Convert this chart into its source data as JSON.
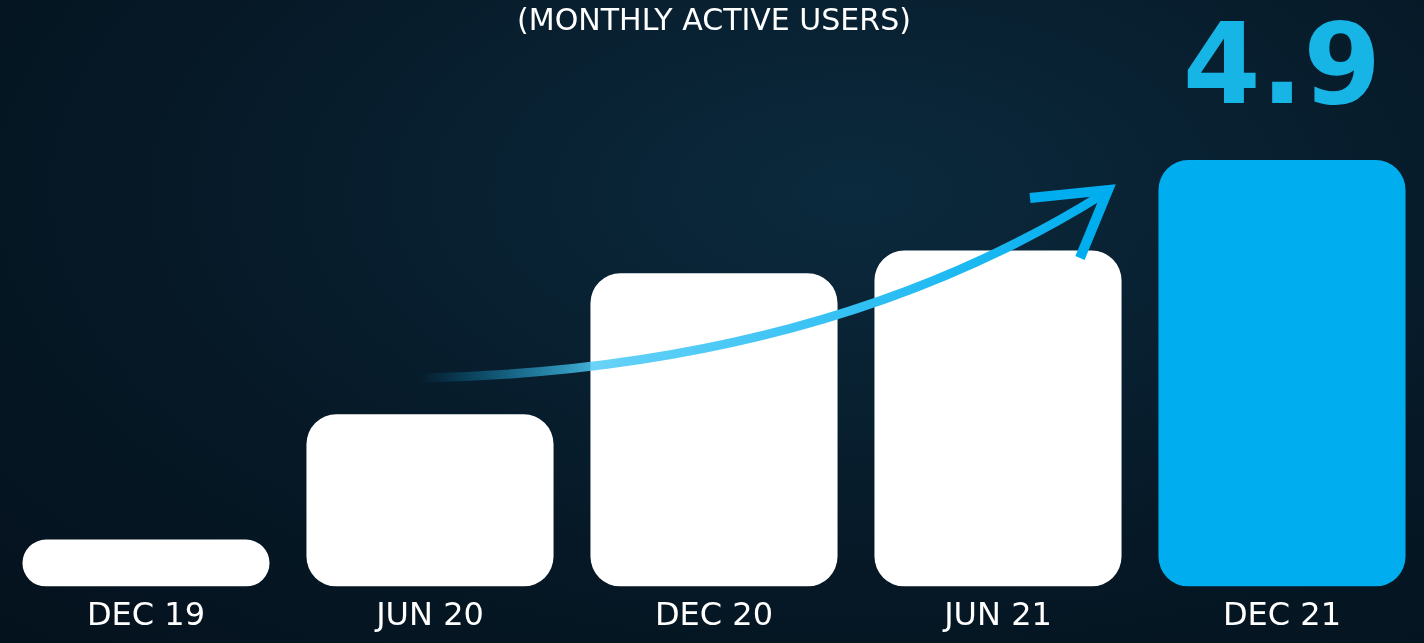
{
  "chart_data": {
    "type": "bar",
    "subtitle": "(MONTHLY ACTIVE USERS)",
    "categories": [
      "DEC 19",
      "JUN 20",
      "DEC 20",
      "JUN 21",
      "DEC 21"
    ],
    "values": [
      0.54,
      1.98,
      3.6,
      3.86,
      4.9
    ],
    "colors": [
      "#ffffff",
      "#ffffff",
      "#ffffff",
      "#ffffff",
      "#00aeef"
    ],
    "value_labels": [
      null,
      null,
      null,
      null,
      "4.9"
    ],
    "ylim": [
      0,
      4.9
    ],
    "tick_labels": "x",
    "grid": false,
    "legend": false
  }
}
